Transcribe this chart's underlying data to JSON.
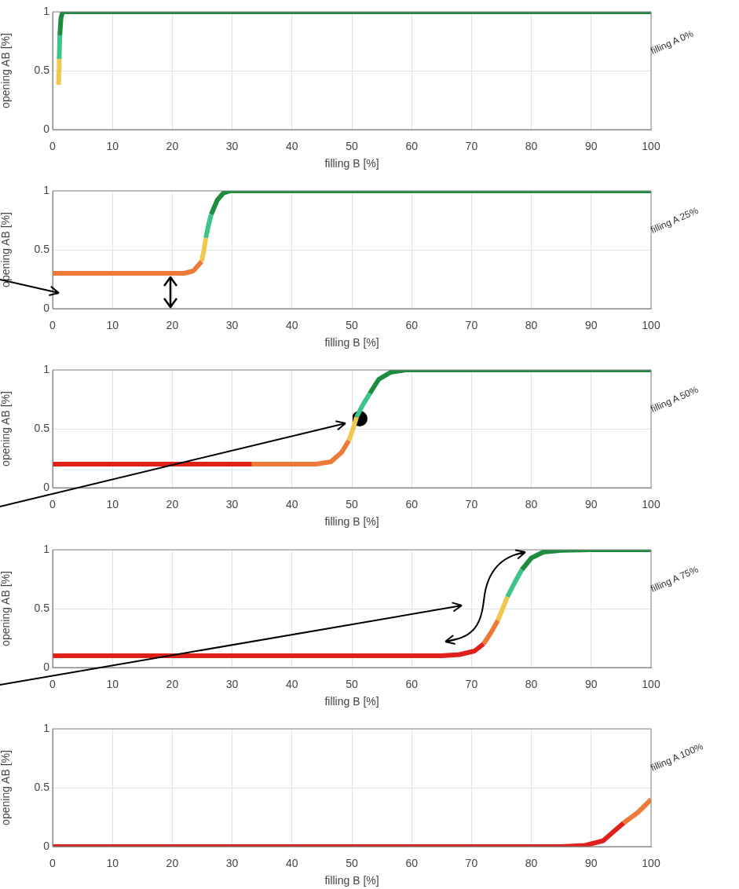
{
  "chart_data": [
    {
      "type": "line",
      "xlabel": "filling B [%]",
      "ylabel": "opening AB [%]",
      "annotations": [
        "filling A 0%"
      ],
      "xlim": [
        0,
        100
      ],
      "xticks": [
        0,
        10,
        20,
        30,
        40,
        50,
        60,
        70,
        80,
        90,
        100
      ],
      "ylim": [
        0,
        1
      ],
      "yticks": [
        0,
        0.5,
        1
      ],
      "grid": true,
      "series": [
        {
          "color": "#f0c850",
          "x": [
            1.0,
            1.05,
            1.1
          ],
          "values": [
            0.38,
            0.5,
            0.6
          ]
        },
        {
          "color": "#3cc48a",
          "x": [
            1.1,
            1.2
          ],
          "values": [
            0.6,
            0.8
          ]
        },
        {
          "color": "#1e8c3e",
          "x": [
            1.2,
            1.4,
            1.7,
            100
          ],
          "values": [
            0.8,
            0.95,
            1,
            1
          ]
        }
      ]
    },
    {
      "type": "line",
      "xlabel": "filling B [%]",
      "ylabel": "opening AB [%]",
      "annotations": [
        "filling A 25%"
      ],
      "xlim": [
        0,
        100
      ],
      "xticks": [
        0,
        10,
        20,
        30,
        40,
        50,
        60,
        70,
        80,
        90,
        100
      ],
      "ylim": [
        0,
        1
      ],
      "yticks": [
        0,
        0.5,
        1
      ],
      "grid": true,
      "series": [
        {
          "color": "#ee7a3a",
          "x": [
            0,
            22,
            23.5,
            24.9
          ],
          "values": [
            0.3,
            0.3,
            0.32,
            0.4
          ]
        },
        {
          "color": "#f0c850",
          "x": [
            24.9,
            25.3,
            25.6
          ],
          "values": [
            0.4,
            0.5,
            0.6
          ]
        },
        {
          "color": "#3cc48a",
          "x": [
            25.6,
            26,
            26.5
          ],
          "values": [
            0.6,
            0.7,
            0.8
          ]
        },
        {
          "color": "#1e8c3e",
          "x": [
            26.5,
            27.5,
            28.5,
            29.7,
            100
          ],
          "values": [
            0.8,
            0.92,
            0.98,
            1,
            1
          ]
        }
      ]
    },
    {
      "type": "line",
      "xlabel": "filling B [%]",
      "ylabel": "opening AB [%]",
      "annotations": [
        "filling A 50%"
      ],
      "xlim": [
        0,
        100
      ],
      "xticks": [
        0,
        10,
        20,
        30,
        40,
        50,
        60,
        70,
        80,
        90,
        100
      ],
      "ylim": [
        0,
        1
      ],
      "yticks": [
        0,
        0.5,
        1
      ],
      "grid": true,
      "series": [
        {
          "color": "#e0201a",
          "x": [
            0,
            33.3
          ],
          "values": [
            0.2,
            0.2
          ]
        },
        {
          "color": "#ee7a3a",
          "x": [
            33.3,
            44,
            46.5,
            48.3,
            49.5
          ],
          "values": [
            0.2,
            0.2,
            0.22,
            0.3,
            0.4
          ]
        },
        {
          "color": "#f0c850",
          "x": [
            49.5,
            50.2,
            50.8
          ],
          "values": [
            0.4,
            0.5,
            0.6
          ]
        },
        {
          "color": "#3cc48a",
          "x": [
            50.8,
            51.8,
            53
          ],
          "values": [
            0.6,
            0.7,
            0.8
          ]
        },
        {
          "color": "#1e8c3e",
          "x": [
            53,
            54.5,
            56.5,
            59,
            100
          ],
          "values": [
            0.8,
            0.92,
            0.98,
            1,
            1
          ]
        }
      ]
    },
    {
      "type": "line",
      "xlabel": "filling B [%]",
      "ylabel": "opening AB [%]",
      "annotations": [
        "filling A 75%"
      ],
      "xlim": [
        0,
        100
      ],
      "xticks": [
        0,
        10,
        20,
        30,
        40,
        50,
        60,
        70,
        80,
        90,
        100
      ],
      "ylim": [
        0,
        1
      ],
      "yticks": [
        0,
        0.5,
        1
      ],
      "grid": true,
      "series": [
        {
          "color": "#e0201a",
          "x": [
            0,
            65,
            68,
            70.5,
            72
          ],
          "values": [
            0.1,
            0.1,
            0.11,
            0.14,
            0.2
          ]
        },
        {
          "color": "#ee7a3a",
          "x": [
            72,
            73.3,
            74.4
          ],
          "values": [
            0.2,
            0.3,
            0.4
          ]
        },
        {
          "color": "#f0c850",
          "x": [
            74.4,
            75.2,
            76
          ],
          "values": [
            0.4,
            0.5,
            0.6
          ]
        },
        {
          "color": "#3cc48a",
          "x": [
            76,
            77.2,
            78.4
          ],
          "values": [
            0.6,
            0.72,
            0.83
          ]
        },
        {
          "color": "#1e8c3e",
          "x": [
            78.4,
            80,
            82,
            85,
            90,
            100
          ],
          "values": [
            0.83,
            0.93,
            0.98,
            0.995,
            1,
            1
          ]
        }
      ]
    },
    {
      "type": "line",
      "xlabel": "filling B [%]",
      "ylabel": "opening AB [%]",
      "annotations": [
        "filling A 100%"
      ],
      "xlim": [
        0,
        100
      ],
      "xticks": [
        0,
        10,
        20,
        30,
        40,
        50,
        60,
        70,
        80,
        90,
        100
      ],
      "ylim": [
        0,
        1
      ],
      "yticks": [
        0,
        0.5,
        1
      ],
      "grid": true,
      "series": [
        {
          "color": "#e0201a",
          "x": [
            0,
            85,
            89,
            92,
            95.4
          ],
          "values": [
            0,
            0,
            0.01,
            0.05,
            0.2
          ]
        },
        {
          "color": "#ee7a3a",
          "x": [
            95.4,
            97.8,
            100
          ],
          "values": [
            0.2,
            0.29,
            0.4
          ]
        }
      ]
    }
  ]
}
